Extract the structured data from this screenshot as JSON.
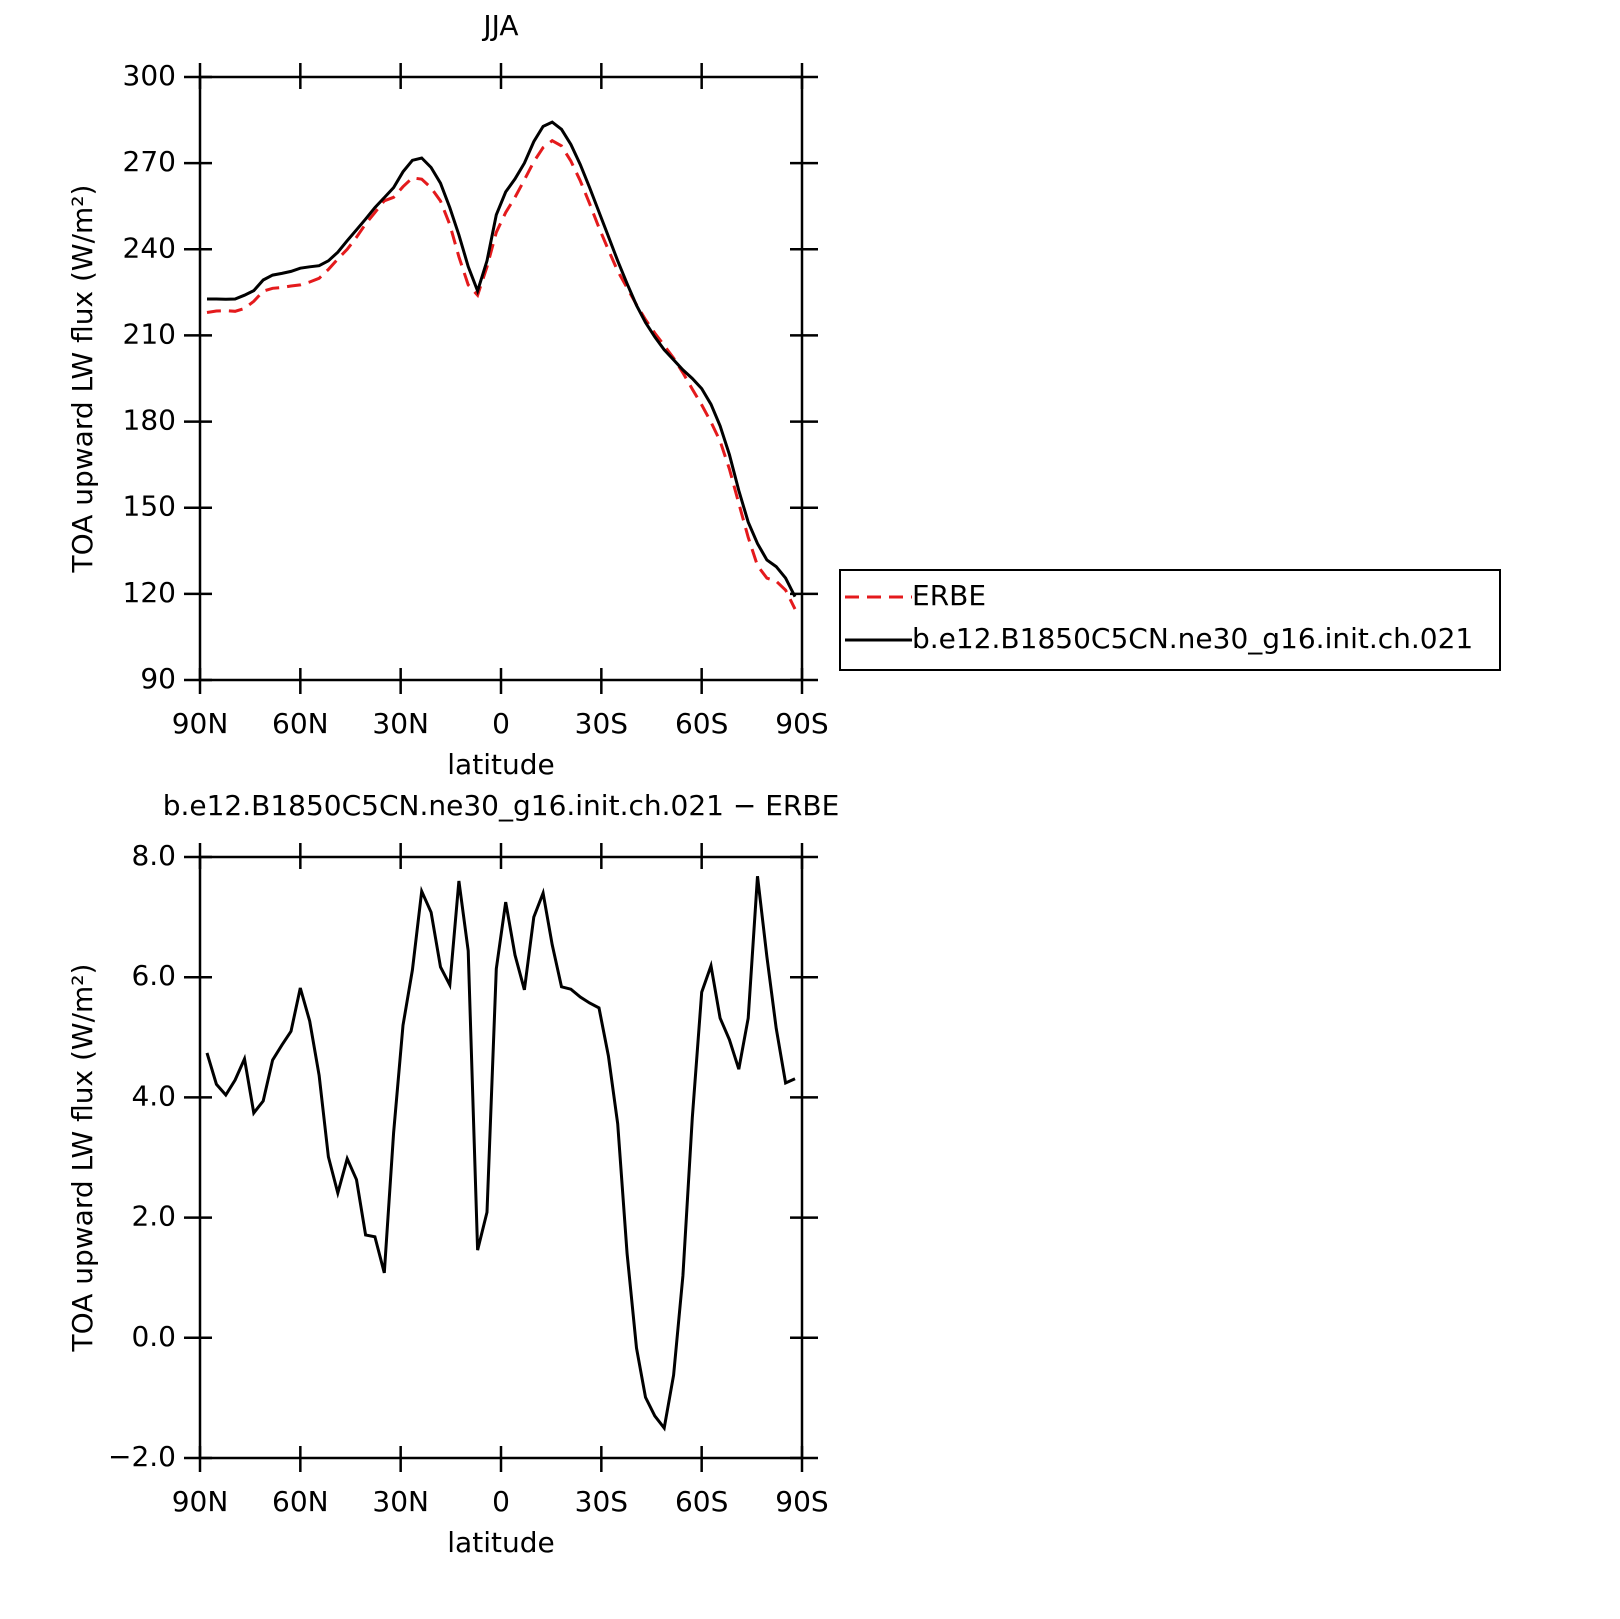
{
  "chart_data": [
    {
      "type": "line",
      "title": "JJA",
      "xlabel": "latitude",
      "ylabel": "TOA upward LW flux (W/m²)",
      "x": [
        87.9,
        85.1,
        82.3,
        79.5,
        76.7,
        73.9,
        71.1,
        68.3,
        65.5,
        62.8,
        60.0,
        57.2,
        54.4,
        51.6,
        48.8,
        46.0,
        43.2,
        40.5,
        37.7,
        34.9,
        32.1,
        29.3,
        26.5,
        23.7,
        20.9,
        18.1,
        15.3,
        12.6,
        9.8,
        7.0,
        4.2,
        1.4,
        -1.4,
        -4.2,
        -7.0,
        -9.8,
        -12.6,
        -15.3,
        -18.1,
        -20.9,
        -23.7,
        -26.5,
        -29.3,
        -32.1,
        -34.9,
        -37.7,
        -40.5,
        -43.2,
        -46.0,
        -48.8,
        -51.6,
        -54.4,
        -57.2,
        -60.0,
        -62.8,
        -65.5,
        -68.3,
        -71.1,
        -73.9,
        -76.7,
        -79.5,
        -82.3,
        -85.1,
        -87.9
      ],
      "series": [
        {
          "name": "ERBE",
          "color": "#e41a1c",
          "dashed": true,
          "values": [
            218.0,
            218.5,
            218.6,
            218.4,
            219.4,
            221.9,
            225.4,
            226.4,
            226.7,
            227.2,
            227.6,
            228.6,
            229.9,
            233.0,
            236.6,
            240.0,
            244.2,
            248.8,
            252.8,
            256.9,
            258.1,
            261.8,
            264.9,
            264.4,
            261.4,
            256.8,
            248.6,
            237.4,
            227.6,
            224.0,
            233.9,
            245.9,
            252.8,
            258.1,
            264.2,
            270.5,
            275.4,
            277.8,
            276.0,
            270.7,
            263.8,
            255.9,
            247.5,
            239.8,
            232.4,
            226.6,
            220.7,
            215.5,
            210.8,
            206.5,
            202.1,
            197.0,
            191.3,
            185.8,
            179.8,
            173.2,
            163.5,
            151.5,
            139.7,
            129.8,
            125.5,
            124.4,
            121.3,
            114.7
          ]
        },
        {
          "name": "b.e12.B1850C5CN.ne30_g16.init.ch.021",
          "color": "#000000",
          "dashed": false,
          "values": [
            222.7,
            222.7,
            222.6,
            222.7,
            224.0,
            225.6,
            229.3,
            231.0,
            231.6,
            232.3,
            233.4,
            233.9,
            234.3,
            236.0,
            239.0,
            243.0,
            246.8,
            250.5,
            254.5,
            258.0,
            261.5,
            267.0,
            271.0,
            271.8,
            268.5,
            263.0,
            254.5,
            245.0,
            234.0,
            225.5,
            236.0,
            252.0,
            260.0,
            264.5,
            270.0,
            277.5,
            282.8,
            284.3,
            281.8,
            276.5,
            269.5,
            261.5,
            253.0,
            244.5,
            236.0,
            228.0,
            220.5,
            214.5,
            209.5,
            205.0,
            201.5,
            198.0,
            195.0,
            191.5,
            186.0,
            178.5,
            168.5,
            156.0,
            145.0,
            137.5,
            131.8,
            129.5,
            125.5,
            119.0
          ]
        }
      ],
      "xlim": [
        90,
        -90
      ],
      "xticks": [
        {
          "value": 90,
          "label": "90N"
        },
        {
          "value": 60,
          "label": "60N"
        },
        {
          "value": 30,
          "label": "30N"
        },
        0,
        {
          "value": -30,
          "label": "30S"
        },
        {
          "value": -60,
          "label": "60S"
        },
        {
          "value": -90,
          "label": "90S"
        }
      ],
      "ylim": [
        90,
        300
      ],
      "yticks": [
        90,
        120,
        150,
        180,
        210,
        240,
        270,
        300
      ],
      "legend": "right"
    },
    {
      "type": "line",
      "title": "b.e12.B1850C5CN.ne30_g16.init.ch.021 − ERBE",
      "xlabel": "latitude",
      "ylabel": "TOA upward LW flux (W/m²)",
      "x": [
        87.9,
        85.1,
        82.3,
        79.5,
        76.7,
        73.9,
        71.1,
        68.3,
        65.5,
        62.8,
        60.0,
        57.2,
        54.4,
        51.6,
        48.8,
        46.0,
        43.2,
        40.5,
        37.7,
        34.9,
        32.1,
        29.3,
        26.5,
        23.7,
        20.9,
        18.1,
        15.3,
        12.6,
        9.8,
        7.0,
        4.2,
        1.4,
        -1.4,
        -4.2,
        -7.0,
        -9.8,
        -12.6,
        -15.3,
        -18.1,
        -20.9,
        -23.7,
        -26.5,
        -29.3,
        -32.1,
        -34.9,
        -37.7,
        -40.5,
        -43.2,
        -46.0,
        -48.8,
        -51.6,
        -54.4,
        -57.2,
        -60.0,
        -62.8,
        -65.5,
        -68.3,
        -71.1,
        -73.9,
        -76.7,
        -79.5,
        -82.3,
        -85.1,
        -87.9
      ],
      "series": [
        {
          "color": "#000000",
          "dashed": false,
          "values": [
            4.74,
            4.22,
            4.04,
            4.29,
            4.64,
            3.74,
            3.94,
            4.62,
            4.87,
            5.1,
            5.82,
            5.27,
            4.37,
            3.01,
            2.41,
            2.98,
            2.63,
            1.71,
            1.68,
            1.08,
            3.41,
            5.2,
            6.12,
            7.43,
            7.08,
            6.17,
            5.87,
            7.6,
            6.44,
            1.46,
            2.09,
            6.14,
            7.25,
            6.37,
            5.79,
            7.0,
            7.4,
            6.54,
            5.84,
            5.8,
            5.67,
            5.57,
            5.49,
            4.69,
            3.56,
            1.4,
            -0.17,
            -0.99,
            -1.3,
            -1.5,
            -0.62,
            1.03,
            3.66,
            5.75,
            6.19,
            5.32,
            4.96,
            4.47,
            5.32,
            7.68,
            6.34,
            5.15,
            4.24,
            4.31
          ]
        }
      ],
      "xlim": [
        90,
        -90
      ],
      "xticks": [
        {
          "value": 90,
          "label": "90N"
        },
        {
          "value": 60,
          "label": "60N"
        },
        {
          "value": 30,
          "label": "30N"
        },
        0,
        {
          "value": -30,
          "label": "30S"
        },
        {
          "value": -60,
          "label": "60S"
        },
        {
          "value": -90,
          "label": "90S"
        }
      ],
      "ylim": [
        -2,
        8
      ],
      "yticks": [
        {
          "value": -2,
          "label": "−2.0"
        },
        {
          "value": 0,
          "label": "0.0"
        },
        {
          "value": 2,
          "label": "2.0"
        },
        {
          "value": 4,
          "label": "4.0"
        },
        {
          "value": 6,
          "label": "6.0"
        },
        {
          "value": 8,
          "label": "8.0"
        }
      ]
    }
  ]
}
